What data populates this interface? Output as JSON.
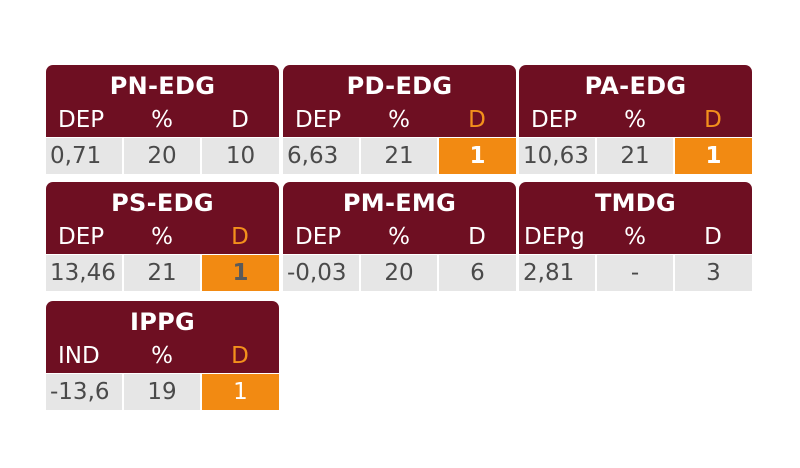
{
  "cards": [
    {
      "title": "PN-EDG",
      "h1": "DEP",
      "h2": "%",
      "h3": "D",
      "v1": "0,71",
      "v2": "20",
      "v3": "10"
    },
    {
      "title": "PD-EDG",
      "h1": "DEP",
      "h2": "%",
      "h3": "D",
      "v1": "6,63",
      "v2": "21",
      "v3": "1"
    },
    {
      "title": "PA-EDG",
      "h1": "DEP",
      "h2": "%",
      "h3": "D",
      "v1": "10,63",
      "v2": "21",
      "v3": "1"
    },
    {
      "title": "PS-EDG",
      "h1": "DEP",
      "h2": "%",
      "h3": "D",
      "v1": "13,46",
      "v2": "21",
      "v3": "1"
    },
    {
      "title": "PM-EMG",
      "h1": "DEP",
      "h2": "%",
      "h3": "D",
      "v1": "-0,03",
      "v2": "20",
      "v3": "6"
    },
    {
      "title": "TMDG",
      "h1": "DEPg",
      "h2": "%",
      "h3": "D",
      "v1": "2,81",
      "v2": "-",
      "v3": "3"
    },
    {
      "title": "IPPG",
      "h1": "IND",
      "h2": "%",
      "h3": "D",
      "v1": "-13,6",
      "v2": "19",
      "v3": "1"
    }
  ],
  "colors": {
    "header_bg": "#6e0f22",
    "cell_bg": "#e6e6e6",
    "highlight": "#f28a12",
    "highlight_header_text": "#f3901c"
  }
}
